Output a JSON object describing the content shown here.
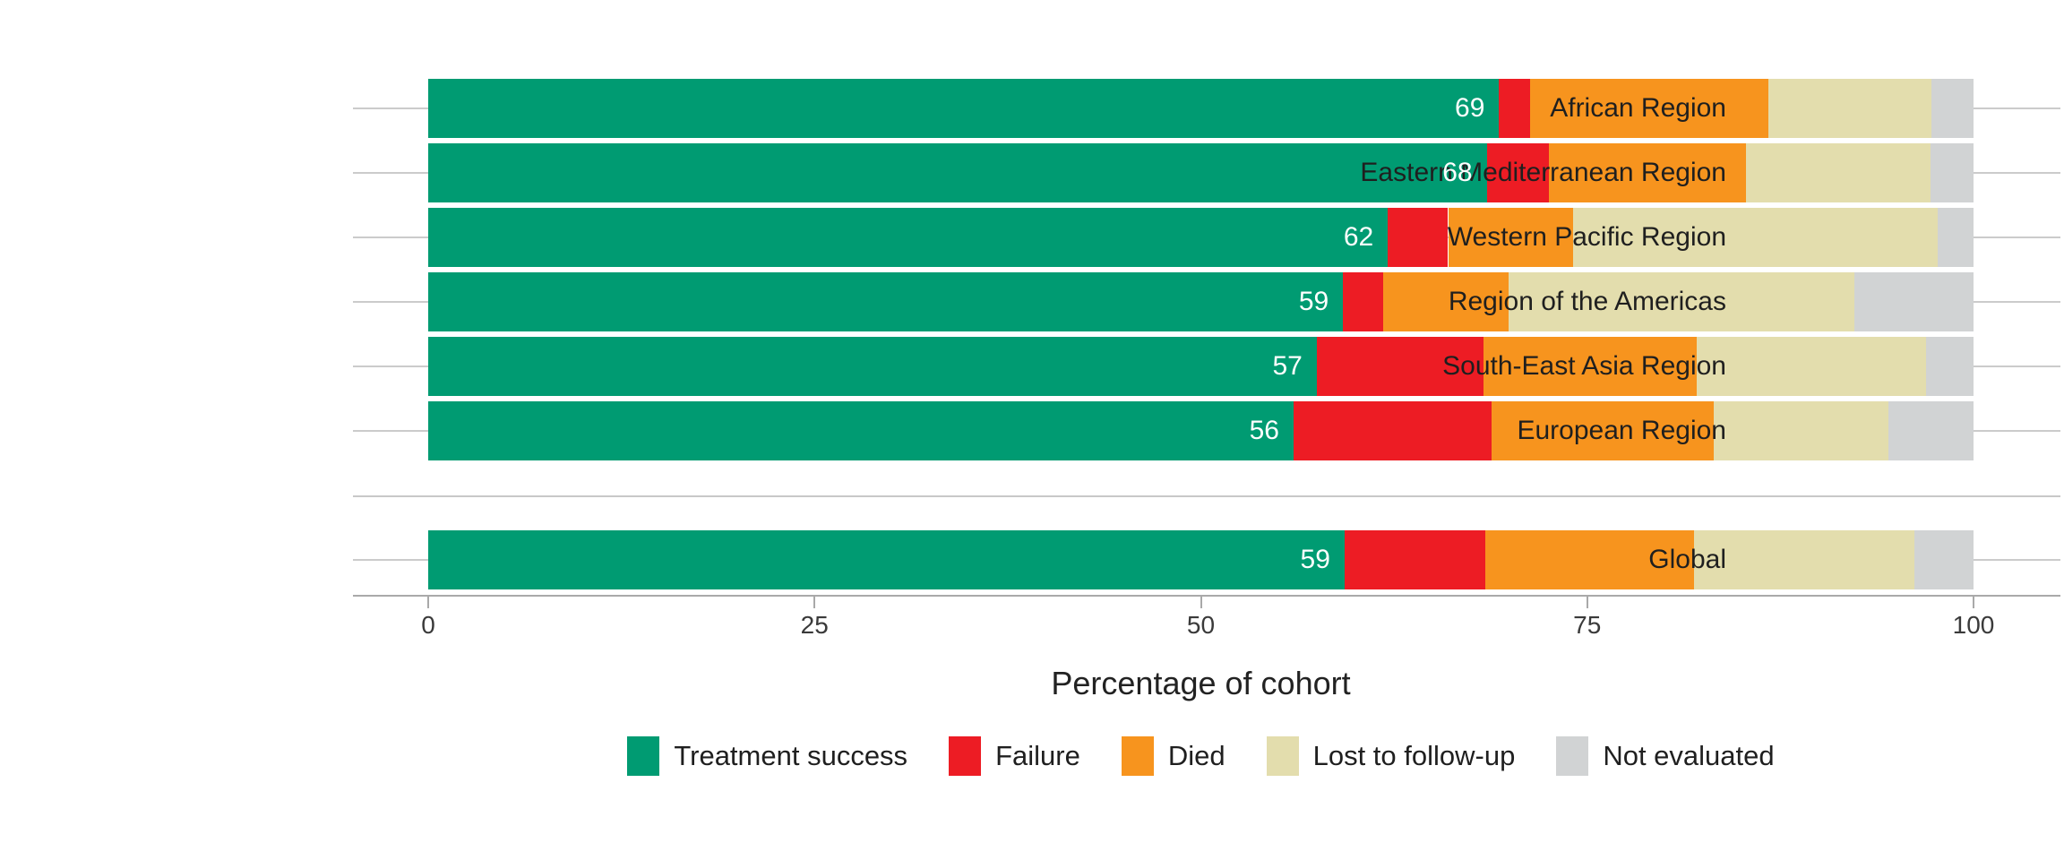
{
  "background_color": "#ffffff",
  "chart_data": {
    "type": "bar",
    "stacked": true,
    "orientation": "horizontal",
    "title": "",
    "xlabel": "Percentage of cohort",
    "ylabel": "",
    "xlim": [
      0,
      100
    ],
    "xticks": [
      "0",
      "25",
      "50",
      "75",
      "100"
    ],
    "grid": "horizontal category leader lines only",
    "legend_position": "bottom",
    "outcomes": [
      "Treatment success",
      "Failure",
      "Died",
      "Lost to follow-up",
      "Not evaluated"
    ],
    "colors": [
      "#009B72",
      "#ED1C24",
      "#F7941E",
      "#E3DDAD",
      "#D1D3D4"
    ],
    "value_label_color": "#ffffff",
    "value_labels_shown_for": "Treatment success",
    "rows": [
      {
        "category": "African Region",
        "label": "69",
        "values": [
          69.3,
          2.0,
          15.4,
          10.6,
          2.7
        ]
      },
      {
        "category": "Eastern Mediterranean Region",
        "label": "68",
        "values": [
          68.5,
          4.0,
          12.8,
          11.9,
          2.8
        ]
      },
      {
        "category": "Western Pacific Region",
        "label": "62",
        "values": [
          62.1,
          3.9,
          8.1,
          23.6,
          2.3
        ]
      },
      {
        "category": "Region of the Americas",
        "label": "59",
        "values": [
          59.2,
          2.6,
          8.1,
          22.4,
          7.7
        ]
      },
      {
        "category": "South-East Asia Region",
        "label": "57",
        "values": [
          57.5,
          10.8,
          13.8,
          14.8,
          3.1
        ]
      },
      {
        "category": "European Region",
        "label": "56",
        "values": [
          56.0,
          12.8,
          14.4,
          11.3,
          5.5
        ]
      },
      {
        "category": "Global",
        "label": "59",
        "values": [
          59.3,
          9.1,
          13.5,
          14.3,
          3.8
        ]
      }
    ]
  }
}
